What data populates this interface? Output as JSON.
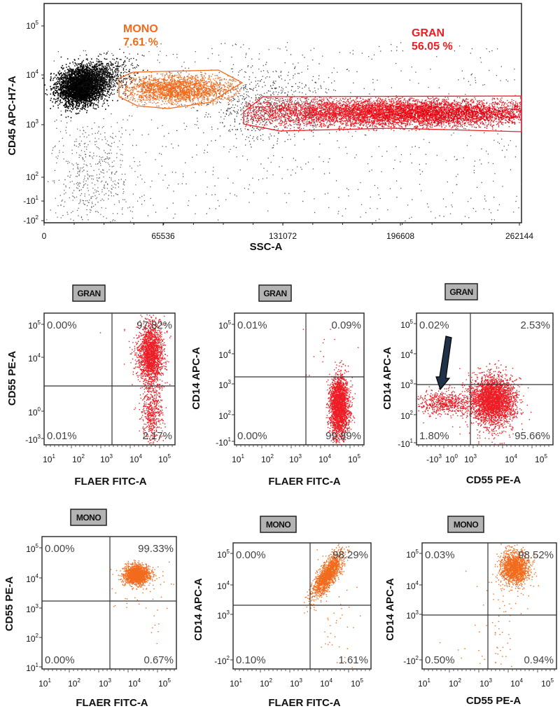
{
  "chart_data": [
    {
      "type": "scatter",
      "xlabel": "SSC-A",
      "ylabel": "CD45 APC-H7-A",
      "xticks": [
        {
          "b": "0",
          "e": ""
        },
        {
          "b": "65536",
          "e": ""
        },
        {
          "b": "131072",
          "e": ""
        },
        {
          "b": "196608",
          "e": ""
        },
        {
          "b": "262144",
          "e": ""
        }
      ],
      "yticks": [
        {
          "b": "10",
          "e": "5"
        },
        {
          "b": "10",
          "e": "4"
        },
        {
          "b": "10",
          "e": "3"
        },
        {
          "b": "10",
          "e": "2"
        },
        {
          "b": "-10",
          "e": "1"
        },
        {
          "b": "-10",
          "e": "2"
        }
      ],
      "xlim": [
        0,
        262144
      ],
      "yscale": "log",
      "gates": [
        {
          "name": "MONO",
          "percent": "7.61 %",
          "color": "#f26b1d"
        },
        {
          "name": "GRAN",
          "percent": "56.05 %",
          "color": "#ee1c24"
        }
      ],
      "ungated_color": "#000000"
    },
    {
      "type": "scatter",
      "population": "GRAN",
      "color": "#ee1c24",
      "xlabel": "FLAER FITC-A",
      "ylabel": "CD55  PE-A",
      "xticks": [
        {
          "b": "10",
          "e": "1"
        },
        {
          "b": "10",
          "e": "2"
        },
        {
          "b": "10",
          "e": "3"
        },
        {
          "b": "10",
          "e": "4"
        },
        {
          "b": "10",
          "e": "5"
        }
      ],
      "yticks": [
        {
          "b": "10",
          "e": "5"
        },
        {
          "b": "10",
          "e": "4"
        },
        {
          "b": "10",
          "e": "0"
        },
        {
          "b": "-10",
          "e": "3"
        }
      ],
      "quadrants": {
        "ul": "0.00%",
        "ur": "97.82%",
        "ll": "0.01%",
        "lr": "2.17%"
      }
    },
    {
      "type": "scatter",
      "population": "GRAN",
      "color": "#ee1c24",
      "xlabel": "FLAER FITC-A",
      "ylabel": "CD14 APC-A",
      "xticks": [
        {
          "b": "10",
          "e": "1"
        },
        {
          "b": "10",
          "e": "2"
        },
        {
          "b": "10",
          "e": "3"
        },
        {
          "b": "10",
          "e": "4"
        },
        {
          "b": "10",
          "e": "5"
        }
      ],
      "yticks": [
        {
          "b": "10",
          "e": "5"
        },
        {
          "b": "10",
          "e": "4"
        },
        {
          "b": "10",
          "e": "3"
        },
        {
          "b": "10",
          "e": "2"
        },
        {
          "b": "-10",
          "e": "1"
        }
      ],
      "quadrants": {
        "ul": "0.01%",
        "ur": "0.09%",
        "ll": "0.00%",
        "lr": "99.89%"
      }
    },
    {
      "type": "scatter",
      "population": "GRAN",
      "color": "#ee1c24",
      "xlabel": "CD55  PE-A",
      "ylabel": "CD14 APC-A",
      "xticks": [
        {
          "b": "-10",
          "e": "3"
        },
        {
          "b": "10",
          "e": "0"
        },
        {
          "b": "10",
          "e": "3"
        },
        {
          "b": "10",
          "e": "4"
        },
        {
          "b": "10",
          "e": "5"
        }
      ],
      "yticks": [
        {
          "b": "10",
          "e": "5"
        },
        {
          "b": "10",
          "e": "4"
        },
        {
          "b": "10",
          "e": "3"
        },
        {
          "b": "10",
          "e": "2"
        },
        {
          "b": "-10",
          "e": "1"
        }
      ],
      "quadrants": {
        "ul": "0.02%",
        "ur": "2.53%",
        "ll": "1.80%",
        "lr": "95.66%"
      },
      "annotation": "arrow"
    },
    {
      "type": "scatter",
      "population": "MONO",
      "color": "#f26b1d",
      "xlabel": "FLAER FITC-A",
      "ylabel": "CD55  PE-A",
      "xticks": [
        {
          "b": "10",
          "e": "1"
        },
        {
          "b": "10",
          "e": "2"
        },
        {
          "b": "10",
          "e": "3"
        },
        {
          "b": "10",
          "e": "4"
        },
        {
          "b": "10",
          "e": "5"
        }
      ],
      "yticks": [
        {
          "b": "10",
          "e": "5"
        },
        {
          "b": "10",
          "e": "4"
        },
        {
          "b": "10",
          "e": "3"
        },
        {
          "b": "10",
          "e": "2"
        },
        {
          "b": "10",
          "e": "1"
        }
      ],
      "quadrants": {
        "ul": "0.00%",
        "ur": "99.33%",
        "ll": "0.00%",
        "lr": "0.67%"
      }
    },
    {
      "type": "scatter",
      "population": "MONO",
      "color": "#f26b1d",
      "xlabel": "FLAER FITC-A",
      "ylabel": "CD14 APC-A",
      "xticks": [
        {
          "b": "10",
          "e": "1"
        },
        {
          "b": "10",
          "e": "2"
        },
        {
          "b": "10",
          "e": "3"
        },
        {
          "b": "10",
          "e": "4"
        },
        {
          "b": "10",
          "e": "5"
        }
      ],
      "yticks": [
        {
          "b": "10",
          "e": "5"
        },
        {
          "b": "10",
          "e": "4"
        },
        {
          "b": "10",
          "e": "3"
        },
        {
          "b": "-10",
          "e": "2"
        }
      ],
      "quadrants": {
        "ul": "0.00%",
        "ur": "98.29%",
        "ll": "0.10%",
        "lr": "1.61%"
      }
    },
    {
      "type": "scatter",
      "population": "MONO",
      "color": "#f26b1d",
      "xlabel": "CD55  PE-A",
      "ylabel": "CD14 APC-A",
      "xticks": [
        {
          "b": "10",
          "e": "1"
        },
        {
          "b": "10",
          "e": "2"
        },
        {
          "b": "10",
          "e": "3"
        },
        {
          "b": "10",
          "e": "4"
        },
        {
          "b": "10",
          "e": "5"
        }
      ],
      "yticks": [
        {
          "b": "10",
          "e": "5"
        },
        {
          "b": "10",
          "e": "4"
        },
        {
          "b": "10",
          "e": "3"
        },
        {
          "b": "-10",
          "e": "2"
        }
      ],
      "quadrants": {
        "ul": "0.03%",
        "ur": "98.52%",
        "ll": "0.50%",
        "lr": "0.94%"
      }
    }
  ]
}
